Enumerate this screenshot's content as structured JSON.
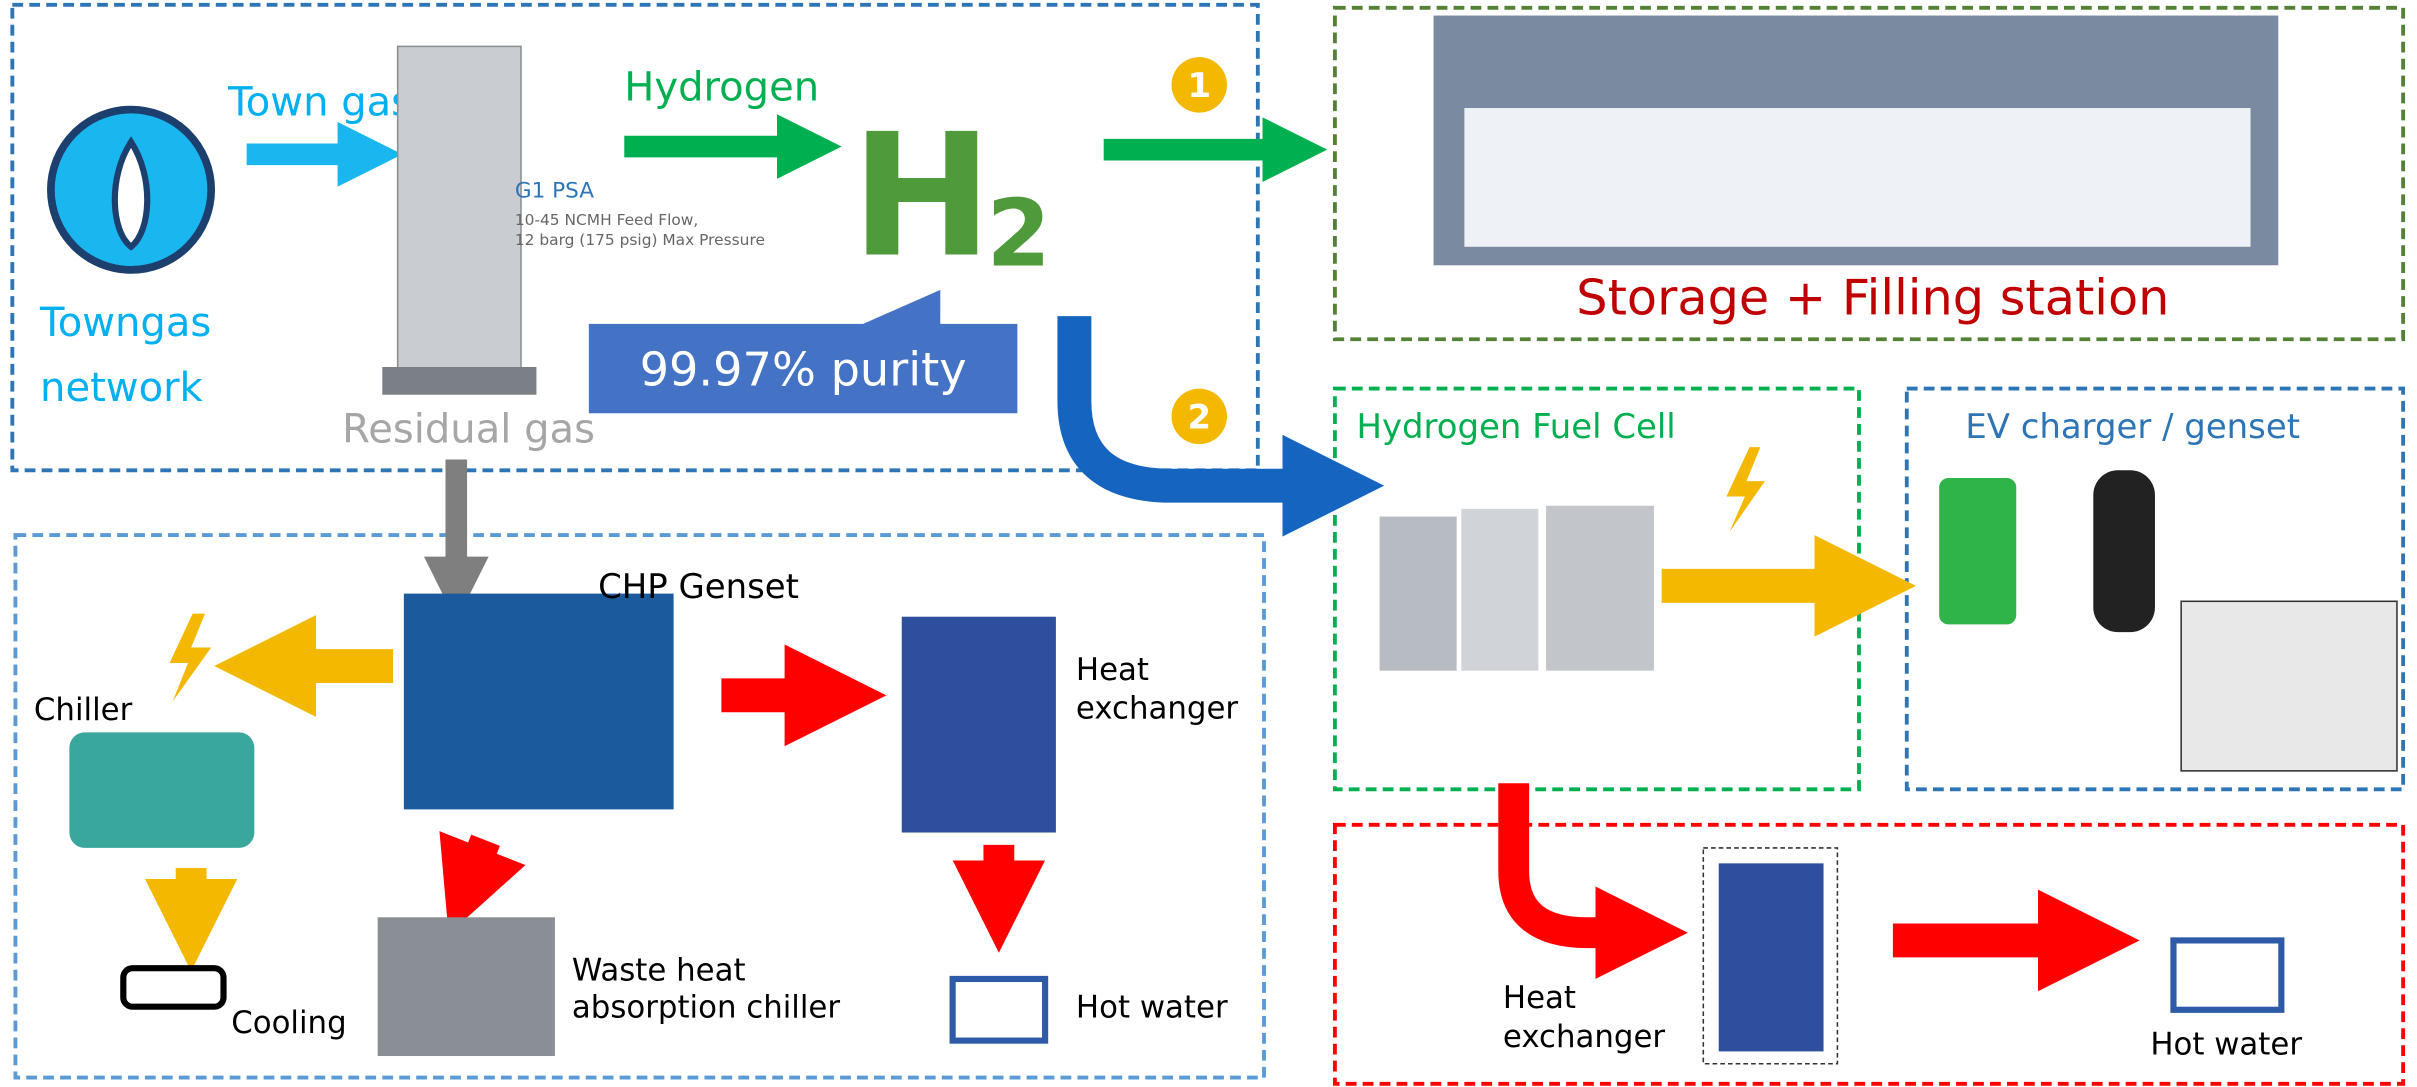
{
  "header": {
    "town_gas": "Town gas",
    "towngas_network": [
      "Towngas",
      "network"
    ],
    "hydrogen": "Hydrogen",
    "h2": [
      "H",
      "2"
    ]
  },
  "psa": {
    "name": "G1 PSA",
    "specs": [
      "10-45 NCMH Feed Flow,",
      "12 barg (175 psig) Max Pressure"
    ]
  },
  "purity": "99.97% purity",
  "residual_gas": "Residual gas",
  "routes": [
    "1",
    "2"
  ],
  "storage": {
    "title": "Storage + Filling station"
  },
  "fuel_cell": {
    "title": "Hydrogen Fuel Cell",
    "heat_exchanger": [
      "Heat",
      "exchanger"
    ],
    "hot_water": "Hot water"
  },
  "ev": {
    "title": "EV charger / genset"
  },
  "chp": {
    "title": "CHP Genset",
    "chiller": "Chiller",
    "cooling": "Cooling",
    "heat_exchanger": [
      "Heat",
      "exchanger"
    ],
    "waste_heat": [
      "Waste heat",
      "absorption chiller"
    ],
    "hot_water": "Hot water"
  }
}
